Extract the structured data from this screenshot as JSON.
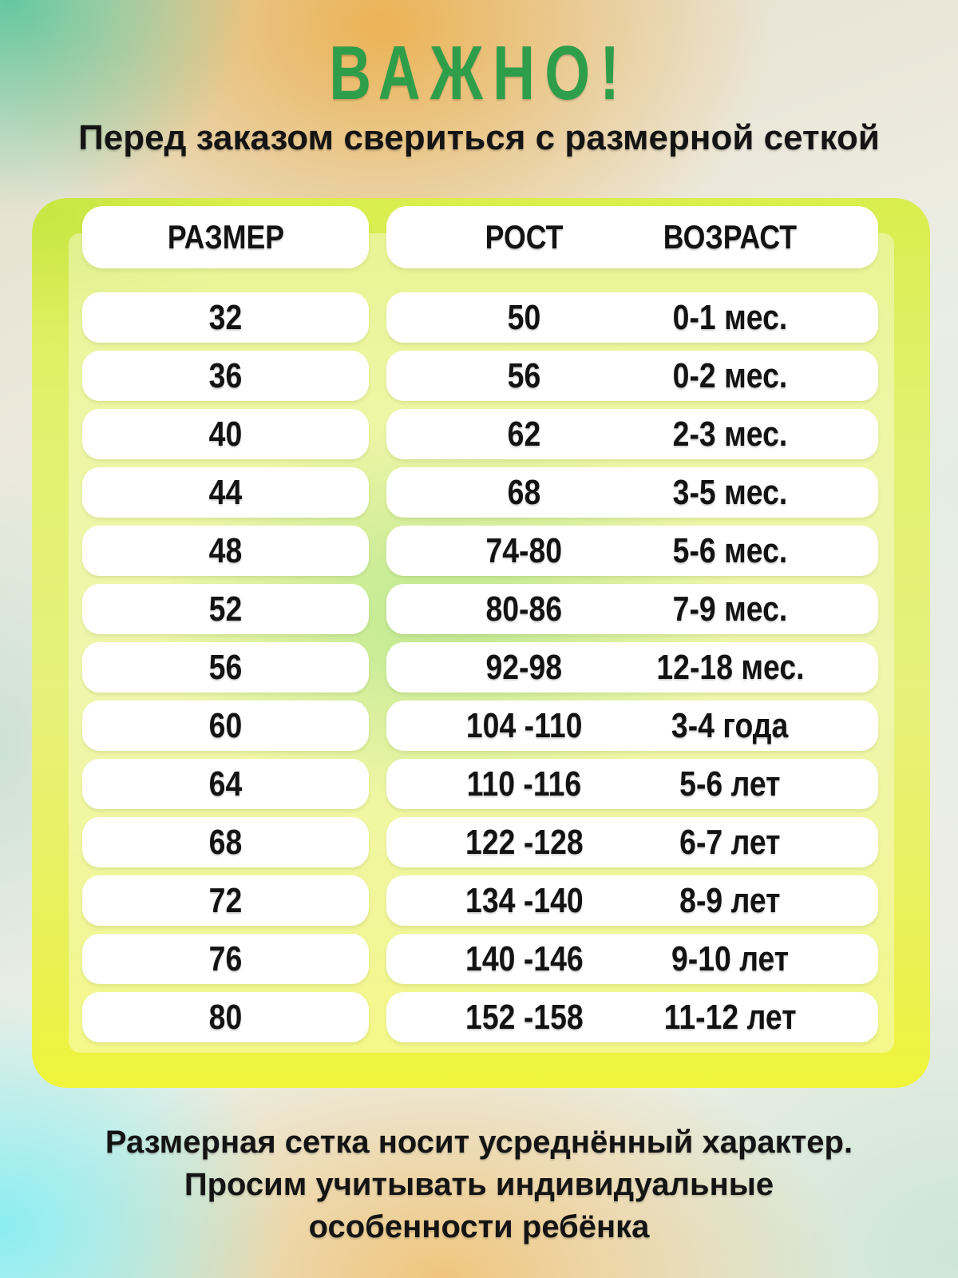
{
  "title": "ВАЖНО!",
  "subtitle": "Перед заказом свериться с размерной сеткой",
  "table": {
    "headers": {
      "size": "РАЗМЕР",
      "height": "РОСТ",
      "age": "ВОЗРАСТ"
    },
    "rows": [
      {
        "size": "32",
        "height": "50",
        "age": "0-1 мес."
      },
      {
        "size": "36",
        "height": "56",
        "age": "0-2 мес."
      },
      {
        "size": "40",
        "height": "62",
        "age": "2-3 мес."
      },
      {
        "size": "44",
        "height": "68",
        "age": "3-5 мес."
      },
      {
        "size": "48",
        "height": "74-80",
        "age": "5-6 мес."
      },
      {
        "size": "52",
        "height": "80-86",
        "age": "7-9 мес."
      },
      {
        "size": "56",
        "height": "92-98",
        "age": "12-18 мес."
      },
      {
        "size": "60",
        "height": "104 -110",
        "age": "3-4 года"
      },
      {
        "size": "64",
        "height": "110 -116",
        "age": "5-6 лет"
      },
      {
        "size": "68",
        "height": "122 -128",
        "age": "6-7 лет"
      },
      {
        "size": "72",
        "height": "134 -140",
        "age": "8-9 лет"
      },
      {
        "size": "76",
        "height": "140 -146",
        "age": "9-10 лет"
      },
      {
        "size": "80",
        "height": "152 -158",
        "age": "11-12 лет"
      }
    ]
  },
  "note": {
    "line1": "Размерная сетка носит усреднённый характер.",
    "line2": "Просим учитывать индивидуальные",
    "line3": "особенности ребёнка"
  },
  "colors": {
    "accent_green": "#2f9e4a",
    "card_yellow": "#e9f152",
    "card_center_green": "#7fd440",
    "pill_white": "#ffffff",
    "text_black": "#141414"
  },
  "chart_data": {
    "type": "table",
    "title": "ВАЖНО!",
    "columns": [
      "РАЗМЕР",
      "РОСТ",
      "ВОЗРАСТ"
    ],
    "rows": [
      [
        "32",
        "50",
        "0-1 мес."
      ],
      [
        "36",
        "56",
        "0-2 мес."
      ],
      [
        "40",
        "62",
        "2-3 мес."
      ],
      [
        "44",
        "68",
        "3-5 мес."
      ],
      [
        "48",
        "74-80",
        "5-6 мес."
      ],
      [
        "52",
        "80-86",
        "7-9 мес."
      ],
      [
        "56",
        "92-98",
        "12-18 мес."
      ],
      [
        "60",
        "104 -110",
        "3-4 года"
      ],
      [
        "64",
        "110 -116",
        "5-6 лет"
      ],
      [
        "68",
        "122 -128",
        "6-7 лет"
      ],
      [
        "72",
        "134 -140",
        "8-9 лет"
      ],
      [
        "76",
        "140 -146",
        "9-10 лет"
      ],
      [
        "80",
        "152 -158",
        "11-12 лет"
      ]
    ]
  }
}
